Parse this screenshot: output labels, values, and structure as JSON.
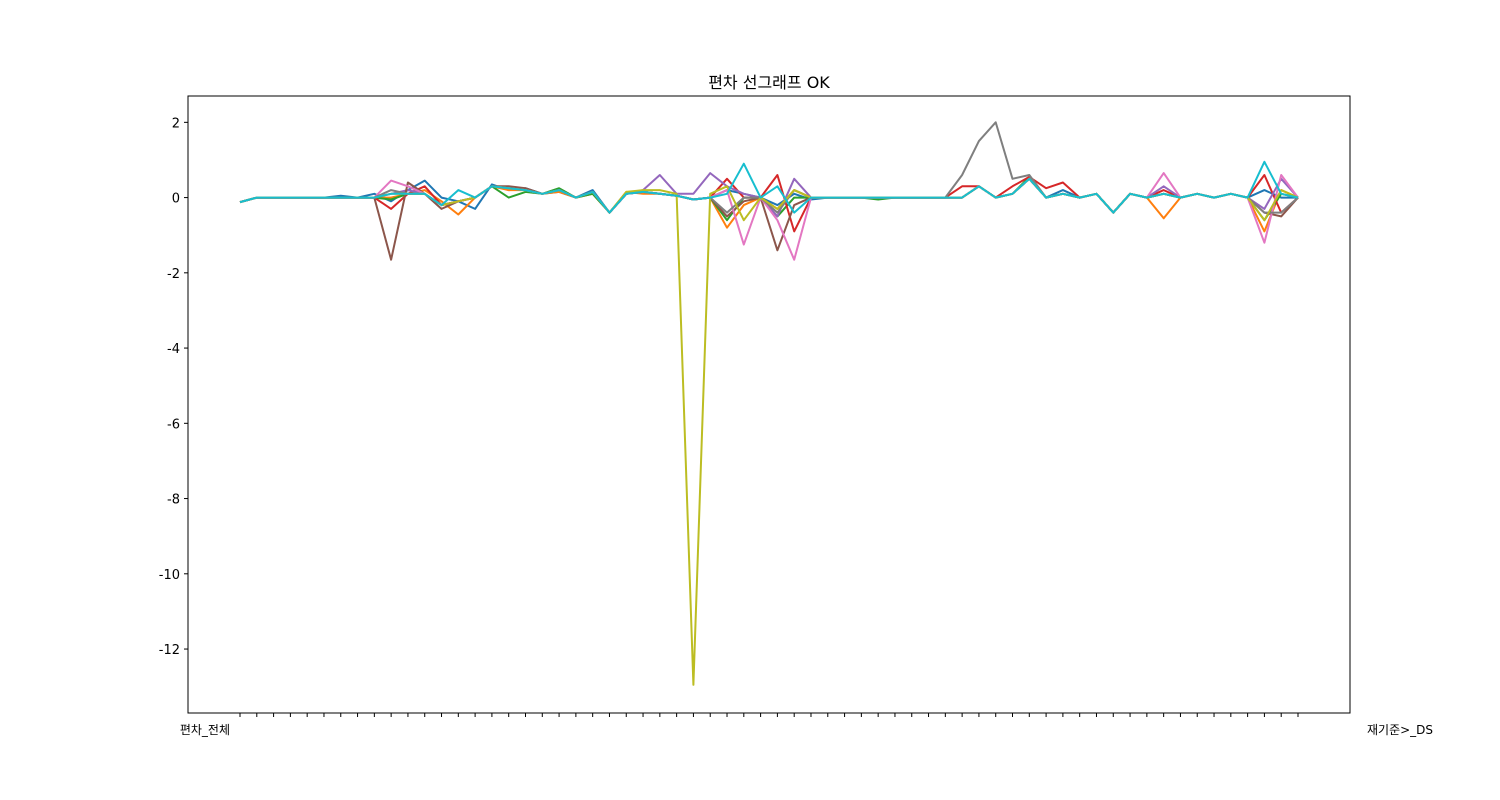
{
  "chart_data": {
    "type": "line",
    "title": "편차 선그래프 OK",
    "xlabel": "",
    "ylabel": "",
    "ylim": [
      -13.7,
      2.7
    ],
    "yticks": [
      2,
      0,
      -2,
      -4,
      -6,
      -8,
      -10,
      -12
    ],
    "grid": false,
    "legend": "none",
    "x_first_label": "편차_전체",
    "x_last_label": "재기준>_DS",
    "x": [
      0,
      1,
      2,
      3,
      4,
      5,
      6,
      7,
      8,
      9,
      10,
      11,
      12,
      13,
      14,
      15,
      16,
      17,
      18,
      19,
      20,
      21,
      22,
      23,
      24,
      25,
      26,
      27,
      28,
      29,
      30,
      31,
      32,
      33,
      34,
      35,
      36,
      37,
      38,
      39,
      40,
      41,
      42,
      43,
      44,
      45,
      46,
      47,
      48,
      49,
      50,
      51,
      52,
      53,
      54,
      55,
      56,
      57,
      58,
      59,
      60,
      61,
      62,
      63
    ],
    "series": [
      {
        "color": "#1f77b4",
        "values": [
          -0.12,
          0,
          0,
          0,
          0,
          0,
          0.05,
          0,
          0.1,
          -0.1,
          0.2,
          0.45,
          0.0,
          -0.1,
          -0.3,
          0.35,
          0.2,
          0.25,
          0.1,
          0.15,
          0,
          0.2,
          -0.4,
          0.1,
          0.15,
          0.1,
          0.05,
          -0.05,
          0.0,
          0.2,
          0.1,
          0,
          -0.2,
          0.1,
          -0.05,
          0,
          0,
          0,
          0,
          0,
          0,
          0,
          0,
          0,
          0.3,
          0,
          0.1,
          0.5,
          0,
          0.2,
          0,
          0.1,
          -0.4,
          0.1,
          0,
          0.1,
          0,
          0.1,
          0,
          0.1,
          0,
          0.2,
          0,
          0
        ]
      },
      {
        "color": "#ff7f0e",
        "values": [
          -0.12,
          0,
          0,
          0,
          0,
          0,
          0,
          0,
          0,
          0,
          0.1,
          0.2,
          -0.1,
          -0.45,
          0,
          0.3,
          0.2,
          0.2,
          0.1,
          0.15,
          0,
          0.1,
          -0.4,
          0.15,
          0.1,
          0.1,
          0.05,
          -0.05,
          0.0,
          -0.8,
          -0.2,
          0,
          -0.3,
          0.2,
          0,
          0,
          0,
          0,
          0,
          0,
          0,
          0,
          0,
          0,
          0.3,
          0,
          0.1,
          0.5,
          0,
          0.1,
          0,
          0.1,
          -0.4,
          0.1,
          0,
          -0.55,
          0,
          0.1,
          0,
          0.1,
          0,
          -0.9,
          0.2,
          0
        ]
      },
      {
        "color": "#2ca02c",
        "values": [
          -0.12,
          0,
          0,
          0,
          0,
          0,
          0,
          0,
          0,
          -0.05,
          0.1,
          0.1,
          -0.2,
          -0.1,
          0,
          0.3,
          0.0,
          0.15,
          0.1,
          0.25,
          0,
          0.1,
          -0.4,
          0.1,
          0.15,
          0.1,
          0.05,
          -0.05,
          0.0,
          -0.6,
          0.0,
          0,
          -0.5,
          0.0,
          0,
          0,
          0,
          0,
          -0.05,
          0,
          0,
          0,
          0,
          0,
          0.3,
          0,
          0.1,
          0.55,
          0,
          0.1,
          0,
          0.1,
          -0.4,
          0.1,
          0,
          0.1,
          0,
          0.1,
          0,
          0.1,
          0,
          -0.6,
          0.1,
          0
        ]
      },
      {
        "color": "#d62728",
        "values": [
          -0.12,
          0,
          0,
          0,
          0,
          0,
          0,
          0,
          0,
          -0.3,
          0.1,
          0.3,
          -0.2,
          -0.1,
          0,
          0.3,
          0.25,
          0.2,
          0.1,
          0.2,
          0,
          0.15,
          -0.4,
          0.1,
          0.15,
          0.1,
          0.05,
          -0.05,
          0.0,
          0.5,
          0.0,
          0,
          0.6,
          -0.9,
          0,
          0,
          0,
          0,
          0,
          0,
          0,
          0,
          0,
          0.3,
          0.3,
          0,
          0.3,
          0.55,
          0.25,
          0.4,
          0,
          0.1,
          -0.4,
          0.1,
          0,
          0.2,
          0,
          0.1,
          0,
          0.1,
          0,
          0.6,
          -0.4,
          0
        ]
      },
      {
        "color": "#9467bd",
        "values": [
          -0.12,
          0,
          0,
          0,
          0,
          0,
          0,
          0,
          0,
          0.1,
          0.2,
          0.1,
          -0.2,
          -0.1,
          0,
          0.3,
          0.25,
          0.2,
          0.1,
          0.2,
          0,
          0.15,
          -0.4,
          0.1,
          0.2,
          0.6,
          0.1,
          0.1,
          0.65,
          0.3,
          0.1,
          0,
          -0.5,
          0.5,
          0,
          0,
          0,
          0,
          0,
          0,
          0,
          0,
          0,
          0,
          0.3,
          0,
          0.1,
          0.5,
          0,
          0.1,
          0,
          0.1,
          -0.4,
          0.1,
          0,
          0.3,
          0,
          0.1,
          0,
          0.1,
          0,
          -0.3,
          0.5,
          0
        ]
      },
      {
        "color": "#8c564b",
        "values": [
          -0.12,
          0,
          0,
          0,
          0,
          0,
          0,
          0,
          0,
          -1.65,
          0.4,
          0.1,
          -0.3,
          -0.1,
          0,
          0.3,
          0.3,
          0.25,
          0.1,
          0.2,
          0,
          0.15,
          -0.4,
          0.1,
          0.15,
          0.1,
          0.05,
          -0.05,
          0.0,
          -0.5,
          -0.1,
          0,
          -1.4,
          -0.2,
          0,
          0,
          0,
          0,
          0,
          0,
          0,
          0,
          0,
          0,
          0.3,
          0,
          0.1,
          0.5,
          0,
          0.1,
          0,
          0.1,
          -0.4,
          0.1,
          0,
          0.1,
          0,
          0.1,
          0,
          0.1,
          0,
          -0.4,
          -0.5,
          0
        ]
      },
      {
        "color": "#e377c2",
        "values": [
          -0.12,
          0,
          0,
          0,
          0,
          0,
          0,
          0,
          0,
          0.45,
          0.3,
          0.1,
          -0.2,
          -0.1,
          0,
          0.3,
          0.25,
          0.2,
          0.1,
          0.2,
          0,
          0.15,
          -0.4,
          0.1,
          0.15,
          0.1,
          0.05,
          -0.05,
          0.0,
          0.2,
          -1.25,
          0,
          -0.6,
          -1.65,
          0,
          0,
          0,
          0,
          0,
          0,
          0,
          0,
          0,
          0,
          0.3,
          0,
          0.1,
          0.5,
          0,
          0.1,
          0,
          0.1,
          -0.4,
          0.1,
          0,
          0.65,
          0,
          0.1,
          0,
          0.1,
          0,
          -1.2,
          0.6,
          0
        ]
      },
      {
        "color": "#7f7f7f",
        "values": [
          -0.12,
          0,
          0,
          0,
          0,
          0,
          0,
          0,
          0,
          0.2,
          0.1,
          0.1,
          -0.2,
          -0.1,
          0,
          0.3,
          0.25,
          0.2,
          0.1,
          0.2,
          0,
          0.15,
          -0.4,
          0.1,
          0.15,
          0.1,
          0.05,
          -0.05,
          0.0,
          -0.4,
          0.0,
          0,
          -0.4,
          0.2,
          0,
          0,
          0,
          0,
          0,
          0,
          0,
          0,
          0,
          0.6,
          1.5,
          2.0,
          0.5,
          0.6,
          0,
          0.1,
          0,
          0.1,
          -0.4,
          0.1,
          0,
          0.1,
          0,
          0.1,
          0,
          0.1,
          0,
          -0.4,
          -0.4,
          0
        ]
      },
      {
        "color": "#bcbd22",
        "values": [
          -0.12,
          0,
          0,
          0,
          0,
          0,
          0,
          0,
          0,
          0.1,
          0.1,
          0.1,
          -0.2,
          -0.1,
          0,
          0.3,
          0.25,
          0.2,
          0.1,
          0.2,
          0,
          0.15,
          -0.4,
          0.15,
          0.2,
          0.2,
          0.1,
          -12.95,
          0.1,
          0.3,
          -0.6,
          0,
          -0.3,
          0.2,
          0,
          0,
          0,
          0,
          0,
          0,
          0,
          0,
          0,
          0,
          0.3,
          0,
          0.1,
          0.5,
          0,
          0.1,
          0,
          0.1,
          -0.4,
          0.1,
          0,
          0.1,
          0,
          0.1,
          0,
          0.1,
          0,
          -0.6,
          0.2,
          0
        ]
      },
      {
        "color": "#17becf",
        "values": [
          -0.12,
          0,
          0,
          0,
          0,
          0,
          0,
          0,
          0,
          0.1,
          0.1,
          0.1,
          -0.2,
          0.2,
          0,
          0.3,
          0.25,
          0.2,
          0.1,
          0.2,
          0,
          0.15,
          -0.4,
          0.1,
          0.15,
          0.1,
          0.05,
          -0.05,
          0.0,
          0.1,
          0.9,
          0,
          0.3,
          -0.4,
          0,
          0,
          0,
          0,
          0,
          0,
          0,
          0,
          0,
          0,
          0.3,
          0,
          0.1,
          0.5,
          0,
          0.1,
          0,
          0.1,
          -0.4,
          0.1,
          0,
          0.1,
          0,
          0.1,
          0,
          0.1,
          0,
          0.95,
          0.1,
          0
        ]
      }
    ]
  }
}
